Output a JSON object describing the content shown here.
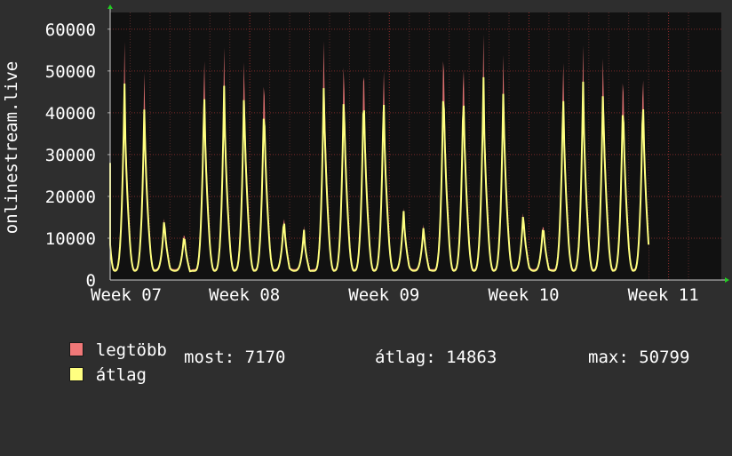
{
  "chart_data": {
    "type": "line",
    "ylabel": "onlinestream.live",
    "ylim": [
      0,
      64000
    ],
    "grid": true,
    "y_ticks": [
      0,
      10000,
      20000,
      30000,
      40000,
      50000,
      60000
    ],
    "x_ticks": [
      "Week 07",
      "Week 08",
      "Week 09",
      "Week 10",
      "Week 11"
    ],
    "x_range_days": [
      0,
      30
    ],
    "x_tick_days": [
      0,
      7,
      14,
      21,
      28
    ],
    "series": [
      {
        "name": "legtöbb",
        "color": "#f07878",
        "daily_peaks": [
          57000,
          53000,
          16500,
          12500,
          57500,
          57500,
          57500,
          54500,
          16800,
          13000,
          61000,
          58000,
          58000,
          55000,
          17800,
          14500,
          61800,
          57800,
          58800,
          57500,
          18000,
          15000,
          57000,
          58000,
          58500,
          55500,
          55000
        ]
      },
      {
        "name": "átlag",
        "color": "#ffff80",
        "daily_peaks": [
          47000,
          43500,
          15500,
          11500,
          47500,
          48000,
          47500,
          45500,
          15500,
          12000,
          49000,
          48000,
          48500,
          46000,
          17000,
          13500,
          50500,
          48000,
          48500,
          47500,
          17000,
          14000,
          47000,
          49000,
          48500,
          46500,
          47000
        ]
      }
    ]
  },
  "legend": {
    "max_label": "legtöbb",
    "avg_label": "átlag",
    "max_color": "#f07878",
    "avg_color": "#ffff80"
  },
  "stats": {
    "now_label": "most:",
    "now_value": "7170",
    "avg_label": "átlag:",
    "avg_value": "14863",
    "max_label": "max:",
    "max_value": "50799"
  }
}
